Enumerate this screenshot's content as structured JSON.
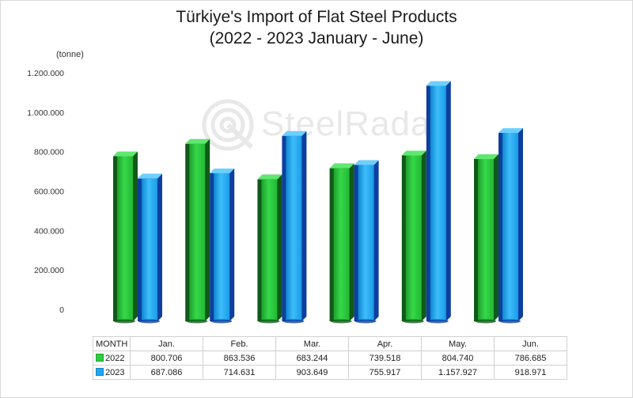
{
  "title_line1": "Türkiye's Import of Flat Steel Products",
  "title_line2": "(2022 - 2023 January - June)",
  "unit_label": "(tonne)",
  "watermark": "SteelRadar",
  "table": {
    "header_label": "MONTH",
    "rows": [
      {
        "label": "2022",
        "values": [
          "800.706",
          "863.536",
          "683.244",
          "739.518",
          "804.740",
          "786.685"
        ]
      },
      {
        "label": "2023",
        "values": [
          "687.086",
          "714.631",
          "903.649",
          "755.917",
          "1.157.927",
          "918.971"
        ]
      }
    ]
  },
  "chart_data": {
    "type": "bar",
    "title": "Türkiye's Import of Flat Steel Products (2022 - 2023 January - June)",
    "ylabel": "(tonne)",
    "categories": [
      "Jan.",
      "Feb.",
      "Mar.",
      "Apr.",
      "May.",
      "Jun."
    ],
    "series": [
      {
        "name": "2022",
        "color": "#2ecc40",
        "values": [
          800706,
          863536,
          683244,
          739518,
          804740,
          786685
        ]
      },
      {
        "name": "2023",
        "color": "#1ea7f0",
        "values": [
          687086,
          714631,
          903649,
          755917,
          1157927,
          918971
        ]
      }
    ],
    "ylim": [
      0,
      1200000
    ],
    "yticks": [
      0,
      200000,
      400000,
      600000,
      800000,
      1000000,
      1200000
    ],
    "ytick_labels": [
      "0",
      "200.000",
      "400.000",
      "600.000",
      "800.000",
      "1.000.000",
      "1.200.000"
    ],
    "grid": false,
    "legend": "data-table"
  }
}
